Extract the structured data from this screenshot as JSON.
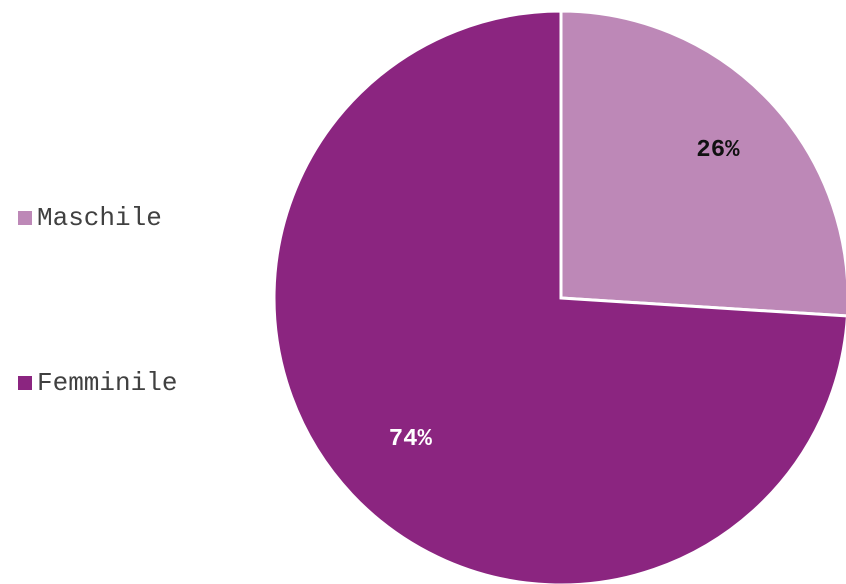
{
  "chart_data": {
    "type": "pie",
    "categories": [
      "Maschile",
      "Femminile"
    ],
    "values": [
      26,
      74
    ],
    "value_labels": [
      "26%",
      "74%"
    ],
    "colors": [
      "#bd88b7",
      "#8b2580"
    ],
    "label_colors": [
      "#111111",
      "#ffffff"
    ],
    "start_angle_deg": 0,
    "direction": "clockwise",
    "legend_position": "left"
  }
}
